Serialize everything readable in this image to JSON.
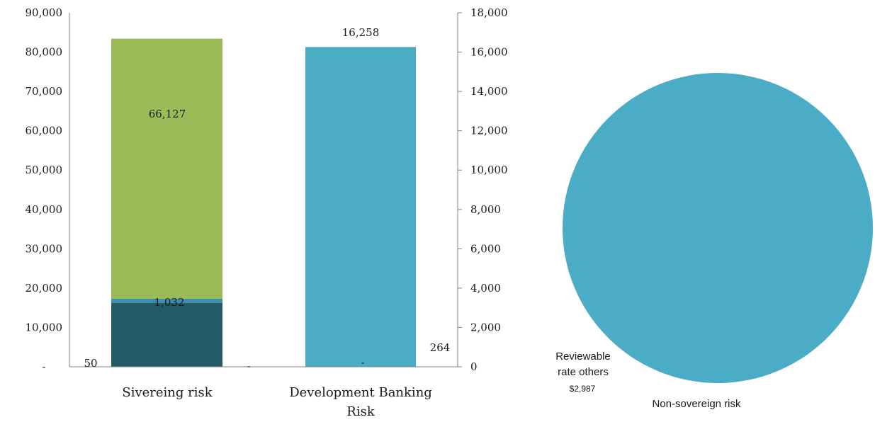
{
  "colors": {
    "dark_teal": "#245a68",
    "mid_blue": "#3a8faa",
    "green": "#9bbb59",
    "light_blue": "#4bacc6",
    "axis": "#808080"
  },
  "chart_data": [
    {
      "type": "bar",
      "stacked": true,
      "dual_axis": true,
      "categories": [
        "Sivereing risk",
        "Development Banking\nRisk"
      ],
      "series": [
        {
          "axis": "left",
          "color": "dark_teal",
          "values": [
            16258,
            0
          ],
          "labels": [
            "",
            ""
          ]
        },
        {
          "axis": "left",
          "color": "mid_blue",
          "values": [
            1032,
            0
          ],
          "labels": [
            "1,032",
            ""
          ]
        },
        {
          "axis": "left",
          "color": "green",
          "values": [
            66127,
            0
          ],
          "labels": [
            "66,127",
            ""
          ]
        },
        {
          "axis": "right",
          "color": "light_blue",
          "values": [
            0,
            16258
          ],
          "labels": [
            "",
            "16,258"
          ]
        }
      ],
      "extra_labels": [
        {
          "category": 0,
          "text": "50"
        },
        {
          "category": 1,
          "text": "-"
        },
        {
          "category": 1,
          "text": "264"
        },
        {
          "category": 0,
          "text": "-"
        }
      ],
      "ylim": [
        0,
        90000
      ],
      "y_ticks": [
        "-",
        "10,000",
        "20,000",
        "30,000",
        "40,000",
        "50,000",
        "60,000",
        "70,000",
        "80,000",
        "90,000"
      ],
      "y2lim": [
        0,
        18000
      ],
      "y2_ticks": [
        "0",
        "2,000",
        "4,000",
        "6,000",
        "8,000",
        "10,000",
        "12,000",
        "14,000",
        "16,000",
        "18,000"
      ],
      "grid": false,
      "legend": "none"
    },
    {
      "type": "pie",
      "slices": [
        {
          "label": "Non-sovereign risk",
          "value": null,
          "color": "light_blue"
        },
        {
          "label": "Reviewable rate others",
          "value_label": "$2,987",
          "value": 2987,
          "color": "light_blue"
        }
      ]
    }
  ]
}
